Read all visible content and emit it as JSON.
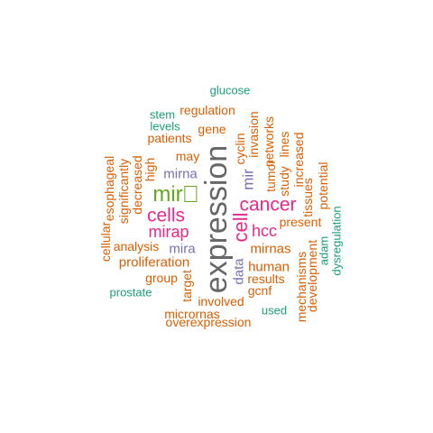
{
  "palette": {
    "green": "#1b9e77",
    "orange": "#d95f02",
    "purple": "#7570b3",
    "magenta": "#e7298a",
    "lime": "#66a61e",
    "grey": "#666666"
  },
  "words": [
    {
      "key": "glucose",
      "text": "glucose",
      "color": "#1b9e77"
    },
    {
      "key": "stem",
      "text": "stem",
      "color": "#1b9e77"
    },
    {
      "key": "regulation",
      "text": "regulation",
      "color": "#d95f02"
    },
    {
      "key": "levels",
      "text": "levels",
      "color": "#1b9e77"
    },
    {
      "key": "gene",
      "text": "gene",
      "color": "#d95f02"
    },
    {
      "key": "patients",
      "text": "patients",
      "color": "#d95f02"
    },
    {
      "key": "may",
      "text": "may",
      "color": "#d95f02"
    },
    {
      "key": "mirna",
      "text": "mirna",
      "color": "#7570b3"
    },
    {
      "key": "mir_box",
      "text": "mir",
      "color": "#66a61e"
    },
    {
      "key": "cells",
      "text": "cells",
      "color": "#e7298a"
    },
    {
      "key": "mirap",
      "text": "mirap",
      "color": "#e7298a"
    },
    {
      "key": "analysis",
      "text": "analysis",
      "color": "#d95f02"
    },
    {
      "key": "mira",
      "text": "mira",
      "color": "#7570b3"
    },
    {
      "key": "proliferation",
      "text": "proliferation",
      "color": "#d95f02"
    },
    {
      "key": "group",
      "text": "group",
      "color": "#d95f02"
    },
    {
      "key": "prostate",
      "text": "prostate",
      "color": "#1b9e77"
    },
    {
      "key": "involved",
      "text": "involved",
      "color": "#d95f02"
    },
    {
      "key": "micrornas",
      "text": "micrornas",
      "color": "#d95f02"
    },
    {
      "key": "overexpression",
      "text": "overexpression",
      "color": "#d95f02"
    },
    {
      "key": "cancer",
      "text": "cancer",
      "color": "#e7298a"
    },
    {
      "key": "present",
      "text": "present",
      "color": "#d95f02"
    },
    {
      "key": "hcc",
      "text": "hcc",
      "color": "#e7298a"
    },
    {
      "key": "mirnas",
      "text": "mirnas",
      "color": "#d95f02"
    },
    {
      "key": "human",
      "text": "human",
      "color": "#d95f02"
    },
    {
      "key": "results",
      "text": "results",
      "color": "#d95f02"
    },
    {
      "key": "gcnf",
      "text": "gcnf",
      "color": "#d95f02"
    },
    {
      "key": "used",
      "text": "used",
      "color": "#1b9e77"
    },
    {
      "key": "expression",
      "text": "expression",
      "color": "#666666"
    },
    {
      "key": "cell",
      "text": "cell",
      "color": "#e7298a"
    },
    {
      "key": "mir",
      "text": "mir",
      "color": "#7570b3"
    },
    {
      "key": "cyclin",
      "text": "cyclin",
      "color": "#d95f02"
    },
    {
      "key": "invasion",
      "text": "invasion",
      "color": "#d95f02"
    },
    {
      "key": "networks",
      "text": "networks",
      "color": "#d95f02"
    },
    {
      "key": "tumor",
      "text": "tumor",
      "color": "#d95f02"
    },
    {
      "key": "study",
      "text": "study",
      "color": "#d95f02"
    },
    {
      "key": "lines",
      "text": "lines",
      "color": "#d95f02"
    },
    {
      "key": "increased",
      "text": "increased",
      "color": "#d95f02"
    },
    {
      "key": "tissues",
      "text": "tissues",
      "color": "#d95f02"
    },
    {
      "key": "potential",
      "text": "potential",
      "color": "#d95f02"
    },
    {
      "key": "adam",
      "text": "adam",
      "color": "#1b9e77"
    },
    {
      "key": "dysregulation",
      "text": "dysregulation",
      "color": "#1b9e77"
    },
    {
      "key": "development",
      "text": "development",
      "color": "#d95f02"
    },
    {
      "key": "mechanisms",
      "text": "mechanisms",
      "color": "#d95f02"
    },
    {
      "key": "data",
      "text": "data",
      "color": "#7570b3"
    },
    {
      "key": "target",
      "text": "target",
      "color": "#d95f02"
    },
    {
      "key": "high",
      "text": "high",
      "color": "#d95f02"
    },
    {
      "key": "decreased",
      "text": "decreased",
      "color": "#d95f02"
    },
    {
      "key": "significantly",
      "text": "significantly",
      "color": "#d95f02"
    },
    {
      "key": "esophageal",
      "text": "esophageal",
      "color": "#d95f02"
    },
    {
      "key": "cellular",
      "text": "cellular",
      "color": "#d95f02"
    }
  ]
}
